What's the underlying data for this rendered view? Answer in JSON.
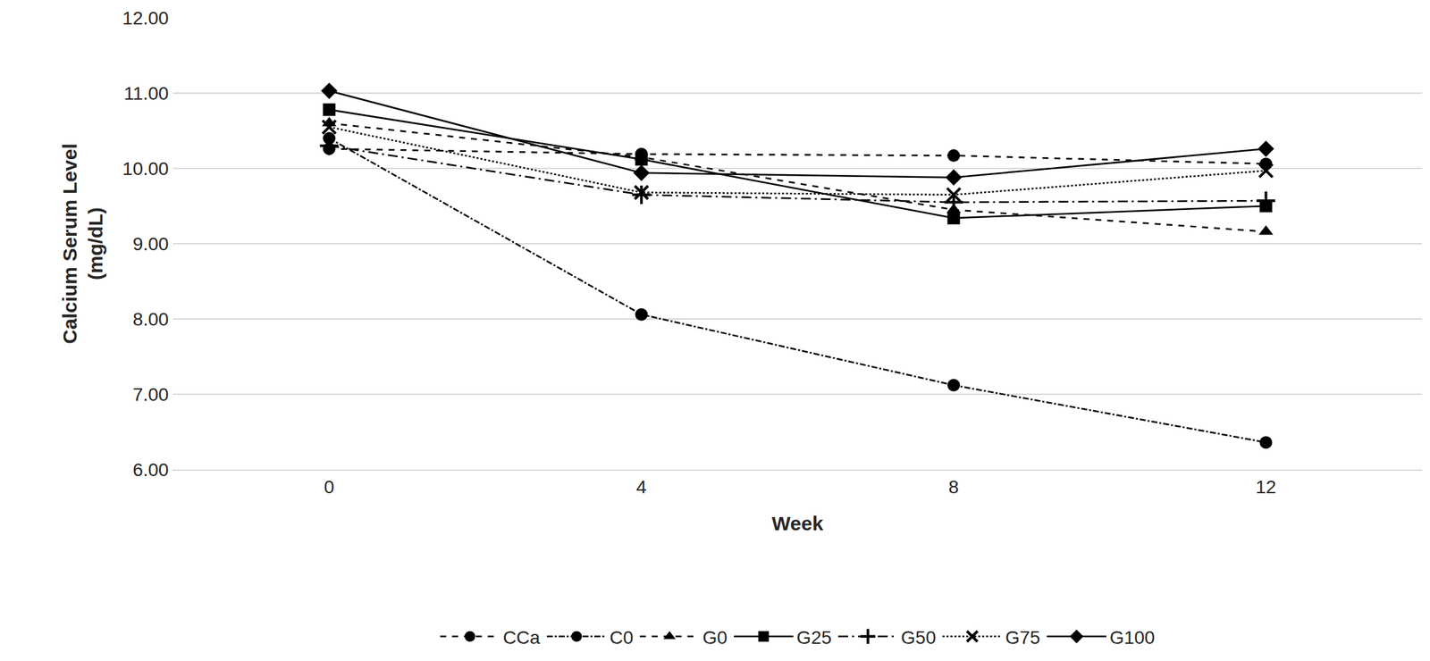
{
  "chart_data": {
    "type": "line",
    "x_label": "Week",
    "y_label": "Calcium Serum Level (mg/dL)",
    "x": [
      0,
      4,
      8,
      12
    ],
    "xlim": [
      -2,
      14
    ],
    "xticks": [
      0,
      4,
      8,
      12
    ],
    "ylim": [
      6,
      12
    ],
    "yticks": [
      {
        "value": 6,
        "label": "6.00"
      },
      {
        "value": 7,
        "label": "7.00"
      },
      {
        "value": 8,
        "label": "8.00"
      },
      {
        "value": 9,
        "label": "9.00"
      },
      {
        "value": 10,
        "label": "10.00"
      },
      {
        "value": 11,
        "label": "11.00"
      },
      {
        "value": 12,
        "label": "12.00"
      }
    ],
    "grid": true,
    "legend": "bottom",
    "series": [
      {
        "name": "CCa",
        "color": "#000000",
        "marker": "circle",
        "line_style": "dash",
        "values": [
          10.26,
          10.19,
          10.17,
          10.06
        ]
      },
      {
        "name": "C0",
        "color": "#000000",
        "marker": "circle",
        "line_style": "dashdot",
        "values": [
          10.4,
          8.06,
          7.12,
          6.36
        ]
      },
      {
        "name": "G0",
        "color": "#000000",
        "marker": "triangle",
        "line_style": "dash",
        "values": [
          10.6,
          10.15,
          9.45,
          9.16
        ]
      },
      {
        "name": "G25",
        "color": "#000000",
        "marker": "square",
        "line_style": "solid",
        "values": [
          10.78,
          10.12,
          9.34,
          9.5
        ]
      },
      {
        "name": "G50",
        "color": "#000000",
        "marker": "plus",
        "line_style": "longdashdot",
        "values": [
          10.3,
          9.65,
          9.55,
          9.57
        ]
      },
      {
        "name": "G75",
        "color": "#000000",
        "marker": "x",
        "line_style": "dot",
        "values": [
          10.55,
          9.68,
          9.65,
          9.97
        ]
      },
      {
        "name": "G100",
        "color": "#000000",
        "marker": "diamond",
        "line_style": "solid",
        "values": [
          11.03,
          9.94,
          9.88,
          10.26
        ]
      }
    ]
  }
}
